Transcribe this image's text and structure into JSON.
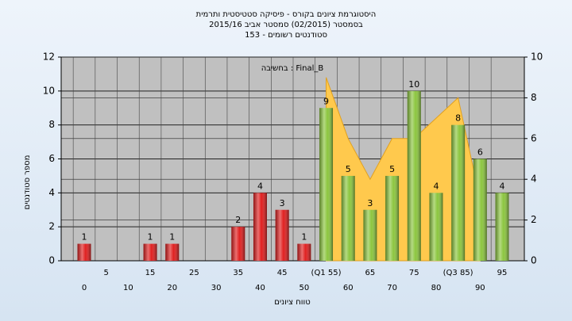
{
  "chart_data": {
    "type": "bar",
    "title": [
      "היסטוגרמת ציונים בקורס - פיסיקה סטטיסטית ותרמית",
      "בסמסטר (02/2015)  סמסטר אביב 2015/16",
      "סטודנטים רשומים - 153"
    ],
    "legend_text": "Final_B : בחשיבה",
    "y_label": "מספר סטודנטים",
    "x_label": "טווח ציונים",
    "categories": [
      "0",
      "5",
      "10",
      "15",
      "20",
      "25",
      "30",
      "35",
      "40",
      "45",
      "50",
      "(Q1 55)",
      "60",
      "65",
      "70",
      "75",
      "80",
      "(Q3 85)",
      "90",
      "95"
    ],
    "values": [
      1,
      0,
      0,
      1,
      1,
      0,
      0,
      2,
      4,
      3,
      1,
      9,
      5,
      3,
      5,
      10,
      4,
      8,
      6,
      4
    ],
    "bar_colors": [
      "#e02020",
      "#e02020",
      "#e02020",
      "#e02020",
      "#e02020",
      "#e02020",
      "#e02020",
      "#e02020",
      "#e02020",
      "#e02020",
      "#e02020",
      "#8cc63f",
      "#8cc63f",
      "#8cc63f",
      "#8cc63f",
      "#8cc63f",
      "#8cc63f",
      "#8cc63f",
      "#8cc63f",
      "#8cc63f"
    ],
    "area": {
      "axis": "y2",
      "color": "#ffc94d",
      "values": [
        null,
        null,
        null,
        null,
        null,
        null,
        null,
        null,
        null,
        null,
        null,
        9,
        6,
        4,
        6,
        6,
        7,
        8,
        3,
        null
      ]
    },
    "ylim": [
      0,
      12
    ],
    "yticks": [
      0,
      2,
      4,
      6,
      8,
      10,
      12
    ],
    "y2lim": [
      0,
      10
    ],
    "y2ticks": [
      0,
      2,
      4,
      6,
      8,
      10
    ],
    "grid": true,
    "plot_background": "#c0c0c0"
  }
}
